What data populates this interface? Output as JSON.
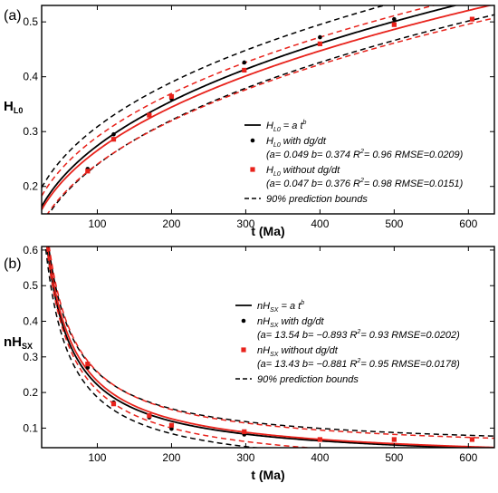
{
  "chart_data": [
    {
      "panel_label": "(a)",
      "type": "scatter",
      "xlabel": "t (Ma)",
      "ylabel": {
        "main": "H",
        "sub": "L0"
      },
      "xlim": [
        25,
        635
      ],
      "ylim": [
        0.15,
        0.53
      ],
      "xticks": [
        100,
        200,
        300,
        400,
        500,
        600
      ],
      "yticks": [
        0.2,
        0.3,
        0.4,
        0.5
      ],
      "ytick_labels": [
        "0.2",
        "0.3",
        "0.4",
        "0.5"
      ],
      "series": [
        {
          "key": "fit_with",
          "kind": "fit",
          "a": 0.049,
          "b": 0.374,
          "color": "#000000",
          "style": "solid"
        },
        {
          "key": "fit_without",
          "kind": "fit",
          "a": 0.047,
          "b": 0.376,
          "color": "#e8221b",
          "style": "solid"
        },
        {
          "key": "pred_with_upper",
          "kind": "fit",
          "a": 0.049,
          "b": 0.374,
          "offset": 0.0345,
          "color": "#000000",
          "style": "dashed"
        },
        {
          "key": "pred_with_lower",
          "kind": "fit",
          "a": 0.049,
          "b": 0.374,
          "offset": -0.0345,
          "color": "#000000",
          "style": "dashed"
        },
        {
          "key": "pred_without_upper",
          "kind": "fit",
          "a": 0.047,
          "b": 0.376,
          "offset": 0.0249,
          "color": "#e8221b",
          "style": "dashed"
        },
        {
          "key": "pred_without_lower",
          "kind": "fit",
          "a": 0.047,
          "b": 0.376,
          "offset": -0.0249,
          "color": "#e8221b",
          "style": "dashed"
        },
        {
          "key": "data_with",
          "kind": "points",
          "marker": "circle",
          "color": "#000000",
          "x": [
            87,
            122,
            170,
            200,
            298,
            400,
            500,
            605
          ],
          "y": [
            0.232,
            0.295,
            0.33,
            0.36,
            0.426,
            0.472,
            0.505,
            0.505
          ]
        },
        {
          "key": "data_without",
          "kind": "points",
          "marker": "square",
          "color": "#e8221b",
          "x": [
            87,
            122,
            170,
            200,
            298,
            400,
            500,
            605
          ],
          "y": [
            0.228,
            0.286,
            0.33,
            0.364,
            0.412,
            0.46,
            0.495,
            0.505
          ]
        }
      ],
      "legend": {
        "placement": "bottom-right",
        "entries": [
          {
            "marker": "line",
            "color": "#000000",
            "parts": [
              [
                "H",
                ""
              ],
              [
                "L0",
                "sub"
              ],
              [
                " = a t",
                ""
              ],
              [
                "b",
                "sup"
              ]
            ]
          },
          {
            "marker": "circle",
            "color": "#000000",
            "parts": [
              [
                "H",
                ""
              ],
              [
                "L0",
                "sub"
              ],
              [
                " with dg/dt",
                ""
              ]
            ],
            "detail": [
              [
                "(a= 0.049 b= 0.374 R",
                ""
              ],
              [
                "2",
                "sup"
              ],
              [
                "= 0.96 RMSE=0.0209)",
                ""
              ]
            ]
          },
          {
            "marker": "square",
            "color": "#e8221b",
            "parts": [
              [
                "H",
                ""
              ],
              [
                "L0",
                "sub"
              ],
              [
                " without dg/dt",
                ""
              ]
            ],
            "detail": [
              [
                "(a= 0.047 b= 0.376 R",
                ""
              ],
              [
                "2",
                "sup"
              ],
              [
                "= 0.98 RMSE=0.0151)",
                ""
              ]
            ]
          },
          {
            "marker": "dash",
            "color": "#000000",
            "parts": [
              [
                "90% prediction bounds",
                ""
              ]
            ]
          }
        ]
      }
    },
    {
      "panel_label": "(b)",
      "type": "scatter",
      "xlabel": "t (Ma)",
      "ylabel": {
        "main": "nH",
        "sub": "SX"
      },
      "xlim": [
        25,
        635
      ],
      "ylim": [
        0.045,
        0.61
      ],
      "xticks": [
        100,
        200,
        300,
        400,
        500,
        600
      ],
      "yticks": [
        0.1,
        0.2,
        0.3,
        0.4,
        0.5,
        0.6
      ],
      "ytick_labels": [
        "0.1",
        "0.2",
        "0.3",
        "0.4",
        "0.5",
        "0.6"
      ],
      "series": [
        {
          "key": "fit_with",
          "kind": "fit",
          "a": 13.54,
          "b": -0.893,
          "color": "#000000",
          "style": "solid"
        },
        {
          "key": "fit_without",
          "kind": "fit",
          "a": 13.43,
          "b": -0.881,
          "color": "#e8221b",
          "style": "solid"
        },
        {
          "key": "pred_with_upper",
          "kind": "fit",
          "a": 13.54,
          "b": -0.893,
          "offset": 0.035,
          "color": "#000000",
          "style": "dashed"
        },
        {
          "key": "pred_with_lower",
          "kind": "fit",
          "a": 13.54,
          "b": -0.893,
          "offset": -0.035,
          "color": "#000000",
          "style": "dashed"
        },
        {
          "key": "pred_without_upper",
          "kind": "fit",
          "a": 13.43,
          "b": -0.881,
          "offset": 0.026,
          "color": "#e8221b",
          "style": "dashed"
        },
        {
          "key": "pred_without_lower",
          "kind": "fit",
          "a": 13.43,
          "b": -0.881,
          "offset": -0.026,
          "color": "#e8221b",
          "style": "dashed"
        },
        {
          "key": "data_with",
          "kind": "points",
          "marker": "circle",
          "color": "#000000",
          "x": [
            87,
            122,
            170,
            200,
            298,
            400,
            500,
            605
          ],
          "y": [
            0.27,
            0.172,
            0.13,
            0.098,
            0.082,
            0.068,
            0.067,
            0.068
          ]
        },
        {
          "key": "data_without",
          "kind": "points",
          "marker": "square",
          "color": "#e8221b",
          "x": [
            87,
            122,
            170,
            200,
            298,
            400,
            500,
            605
          ],
          "y": [
            0.28,
            0.168,
            0.135,
            0.108,
            0.09,
            0.068,
            0.068,
            0.068
          ]
        }
      ],
      "legend": {
        "placement": "center-right",
        "entries": [
          {
            "marker": "line",
            "color": "#000000",
            "parts": [
              [
                "nH",
                ""
              ],
              [
                "SX",
                "sub"
              ],
              [
                " = a t",
                ""
              ],
              [
                "b",
                "sup"
              ]
            ]
          },
          {
            "marker": "circle",
            "color": "#000000",
            "parts": [
              [
                "nH",
                ""
              ],
              [
                "SX",
                "sub"
              ],
              [
                " with dg/dt",
                ""
              ]
            ],
            "detail": [
              [
                "(a= 13.54 b= −0.893 R",
                ""
              ],
              [
                "2",
                "sup"
              ],
              [
                "= 0.93 RMSE=0.0202)",
                ""
              ]
            ]
          },
          {
            "marker": "square",
            "color": "#e8221b",
            "parts": [
              [
                "nH",
                ""
              ],
              [
                "SX",
                "sub"
              ],
              [
                " without dg/dt",
                ""
              ]
            ],
            "detail": [
              [
                "(a= 13.43 b= −0.881 R",
                ""
              ],
              [
                "2",
                "sup"
              ],
              [
                "= 0.95 RMSE=0.0178)",
                ""
              ]
            ]
          },
          {
            "marker": "dash",
            "color": "#000000",
            "parts": [
              [
                "90% prediction bounds",
                ""
              ]
            ]
          }
        ]
      }
    }
  ]
}
